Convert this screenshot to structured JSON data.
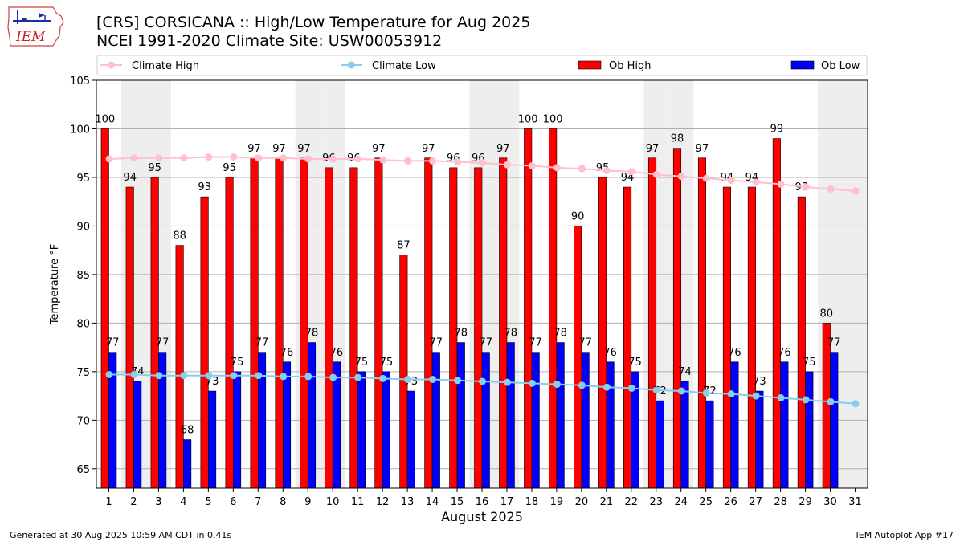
{
  "header": {
    "title_line1": "[CRS] CORSICANA :: High/Low Temperature for Aug 2025",
    "title_line2": "NCEI 1991-2020 Climate Site: USW00053912",
    "logo_text": "IEM"
  },
  "footer": {
    "left": "Generated at 30 Aug 2025 10:59 AM CDT in 0.41s",
    "right": "IEM Autoplot App #17"
  },
  "colors": {
    "ob_high": "#ff0000",
    "ob_low": "#0000ff",
    "climate_high": "#ffc0cb",
    "climate_low": "#87ceeb",
    "weekend_shade": "#eeeeee",
    "grid": "#b0b0b0"
  },
  "chart_data": {
    "type": "bar",
    "xlabel": "August 2025",
    "ylabel": "Temperature °F",
    "ylim": [
      63,
      105
    ],
    "yticks": [
      65,
      70,
      75,
      80,
      85,
      90,
      95,
      100,
      105
    ],
    "grid": "horizontal",
    "legend_position": "top",
    "x": [
      1,
      2,
      3,
      4,
      5,
      6,
      7,
      8,
      9,
      10,
      11,
      12,
      13,
      14,
      15,
      16,
      17,
      18,
      19,
      20,
      21,
      22,
      23,
      24,
      25,
      26,
      27,
      28,
      29,
      30,
      31
    ],
    "shaded_days": [
      2,
      3,
      9,
      10,
      16,
      17,
      23,
      24,
      30,
      31
    ],
    "series": [
      {
        "name": "Ob High",
        "kind": "bar",
        "values": [
          100,
          94,
          95,
          88,
          93,
          95,
          97,
          97,
          97,
          96,
          96,
          97,
          87,
          97,
          96,
          96,
          97,
          100,
          100,
          90,
          95,
          94,
          97,
          98,
          97,
          94,
          94,
          99,
          93,
          80,
          null
        ]
      },
      {
        "name": "Ob Low",
        "kind": "bar",
        "values": [
          77,
          74,
          77,
          68,
          73,
          75,
          77,
          76,
          78,
          76,
          75,
          75,
          73,
          77,
          78,
          77,
          78,
          77,
          78,
          77,
          76,
          75,
          72,
          74,
          72,
          76,
          73,
          76,
          75,
          77,
          null
        ]
      },
      {
        "name": "Climate High",
        "kind": "line",
        "values": [
          96.9,
          97.0,
          97.0,
          97.0,
          97.1,
          97.1,
          97.0,
          97.0,
          96.9,
          96.9,
          96.9,
          96.8,
          96.7,
          96.7,
          96.6,
          96.5,
          96.3,
          96.2,
          96.0,
          95.9,
          95.7,
          95.6,
          95.3,
          95.1,
          94.9,
          94.7,
          94.5,
          94.3,
          94.0,
          93.8,
          93.6
        ]
      },
      {
        "name": "Climate Low",
        "kind": "line",
        "values": [
          74.7,
          74.7,
          74.6,
          74.6,
          74.6,
          74.6,
          74.6,
          74.5,
          74.5,
          74.4,
          74.4,
          74.3,
          74.2,
          74.2,
          74.1,
          74.0,
          73.9,
          73.8,
          73.7,
          73.6,
          73.4,
          73.3,
          73.1,
          73.0,
          72.8,
          72.7,
          72.5,
          72.3,
          72.1,
          71.9,
          71.7
        ]
      }
    ]
  }
}
